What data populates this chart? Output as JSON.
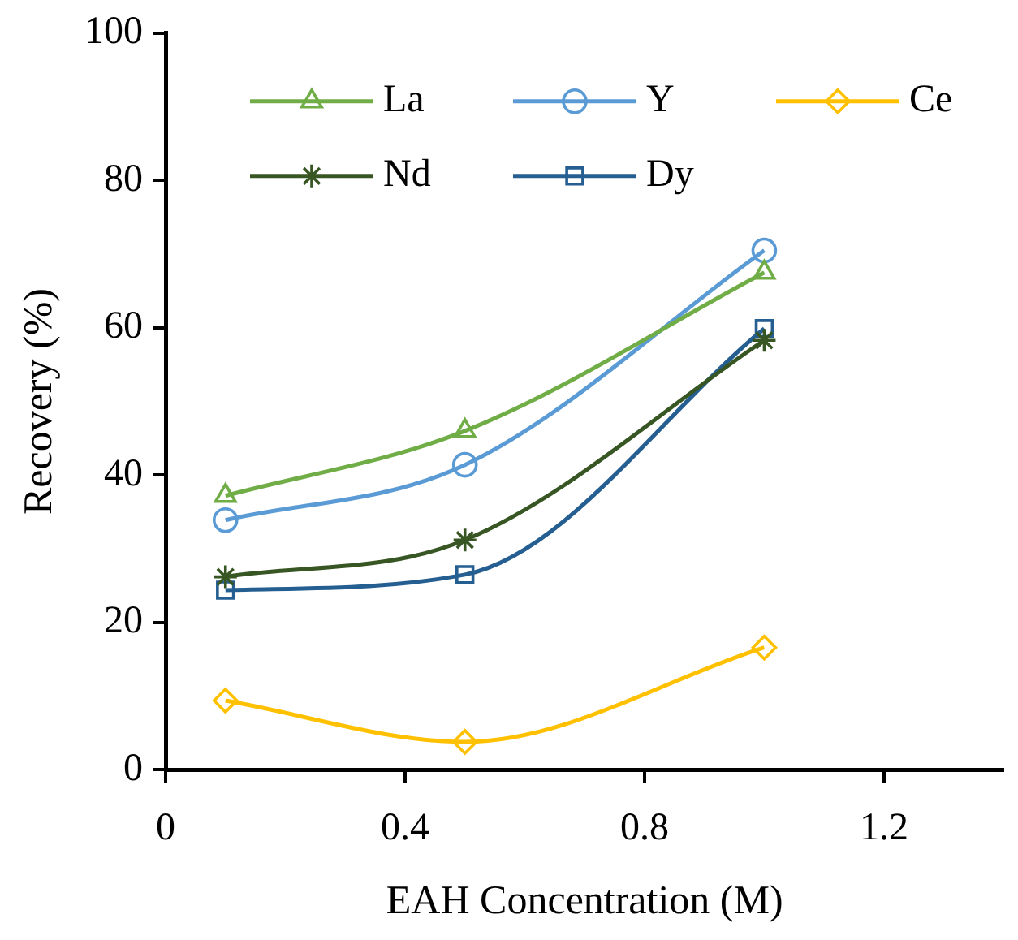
{
  "chart_data": {
    "type": "line",
    "xlabel": "EAH Concentration (M)",
    "ylabel": "Recovery (%)",
    "x": [
      0.1,
      0.5,
      1.0
    ],
    "xlim": [
      0,
      1.4
    ],
    "xticks": [
      0,
      0.4,
      0.8,
      1.2
    ],
    "ylim": [
      0,
      100
    ],
    "yticks": [
      0,
      20,
      40,
      60,
      80,
      100
    ],
    "grid": false,
    "legend": "top",
    "line_style": "solid",
    "series": [
      {
        "name": "La",
        "color": "#70ad47",
        "marker": "triangle",
        "values": [
          37.2,
          46,
          67.5
        ]
      },
      {
        "name": "Y",
        "color": "#5b9bd5",
        "marker": "circle",
        "values": [
          33.9,
          41.4,
          70.5
        ]
      },
      {
        "name": "Ce",
        "color": "#ffc000",
        "marker": "diamond",
        "values": [
          9.4,
          3.8,
          16.6
        ]
      },
      {
        "name": "Nd",
        "color": "#375623",
        "marker": "cross",
        "values": [
          26.2,
          31.2,
          58.3
        ]
      },
      {
        "name": "Dy",
        "color": "#255e91",
        "marker": "square",
        "values": [
          24.4,
          26.5,
          59.9
        ]
      }
    ]
  }
}
